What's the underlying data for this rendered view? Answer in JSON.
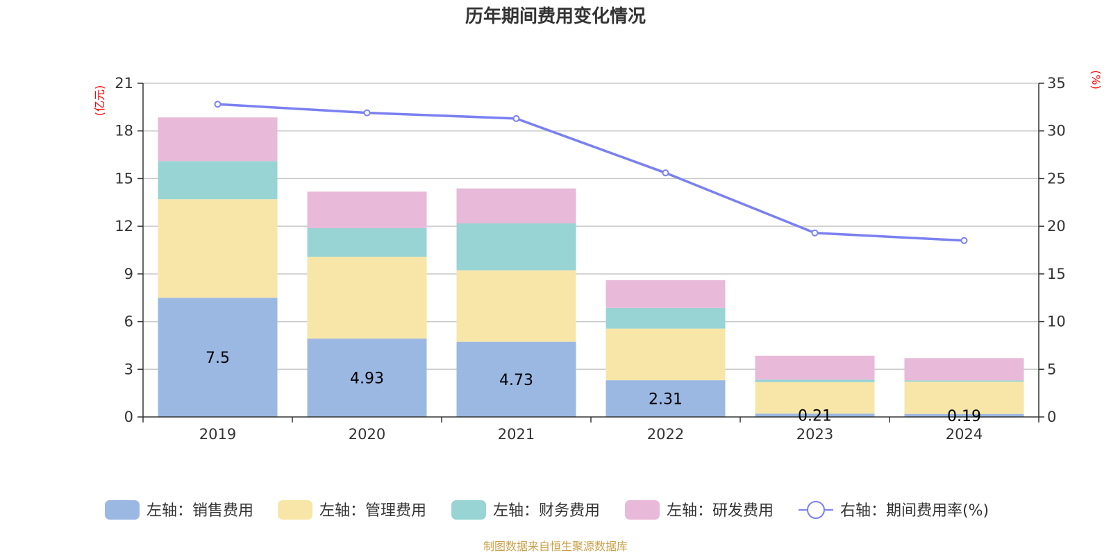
{
  "chart_data": {
    "type": "bar",
    "stacked": true,
    "title": "历年期间费用变化情况",
    "categories": [
      "2019",
      "2020",
      "2021",
      "2022",
      "2023",
      "2024"
    ],
    "left_axis": {
      "unit": "(亿元)",
      "ylim": [
        0,
        21
      ],
      "ticks": [
        0,
        3,
        6,
        9,
        12,
        15,
        18,
        21
      ]
    },
    "right_axis": {
      "unit": "(%)",
      "ylim": [
        0,
        35
      ],
      "ticks": [
        0,
        5,
        10,
        15,
        20,
        25,
        30,
        35
      ]
    },
    "series": [
      {
        "name": "左轴：销售费用",
        "axis": "left",
        "color": "#9bb8e3",
        "values": [
          7.5,
          4.93,
          4.73,
          2.31,
          0.21,
          0.19
        ],
        "labels": [
          "7.5",
          "4.93",
          "4.73",
          "2.31",
          "0.21",
          "0.19"
        ]
      },
      {
        "name": "左轴：管理费用",
        "axis": "left",
        "color": "#f8e6a8",
        "values": [
          6.2,
          5.15,
          4.5,
          3.25,
          1.98,
          2.03
        ]
      },
      {
        "name": "左轴：财务费用",
        "axis": "left",
        "color": "#98d4d4",
        "values": [
          2.4,
          1.8,
          2.95,
          1.3,
          0.16,
          0.08
        ]
      },
      {
        "name": "左轴：研发费用",
        "axis": "left",
        "color": "#e8b9d8",
        "values": [
          2.75,
          2.3,
          2.2,
          1.75,
          1.5,
          1.4
        ]
      },
      {
        "name": "右轴：期间费用率(%)",
        "axis": "right",
        "type": "line",
        "color": "#7a80f0",
        "values": [
          32.8,
          31.9,
          31.3,
          25.6,
          19.3,
          18.5
        ]
      }
    ],
    "legend_position": "bottom",
    "grid": true,
    "source": "制图数据来自恒生聚源数据库"
  }
}
